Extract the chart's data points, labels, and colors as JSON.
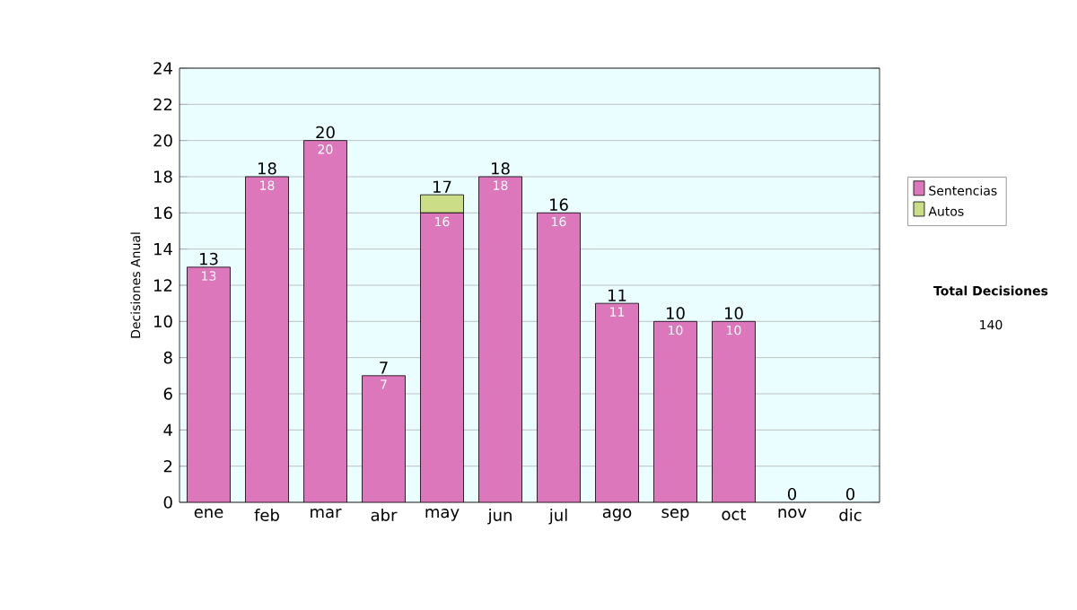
{
  "chart_data": {
    "type": "bar",
    "stacked": true,
    "ylabel": "Decisiones Anual",
    "categories": [
      "ene",
      "feb",
      "mar",
      "abr",
      "may",
      "jun",
      "jul",
      "ago",
      "sep",
      "oct",
      "nov",
      "dic"
    ],
    "series": [
      {
        "name": "Sentencias",
        "color": "#dd77bb",
        "values": [
          13,
          18,
          20,
          7,
          16,
          18,
          16,
          11,
          10,
          10,
          0,
          0
        ],
        "value_labels": [
          "13",
          "18",
          "20",
          "7",
          "16",
          "18",
          "16",
          "11",
          "10",
          "10",
          null,
          null
        ]
      },
      {
        "name": "Autos",
        "color": "#ccdd88",
        "values": [
          0,
          0,
          0,
          0,
          1,
          0,
          0,
          0,
          0,
          0,
          0,
          0
        ]
      }
    ],
    "totals": [
      "13",
      "18",
      "20",
      "7",
      "17",
      "18",
      "16",
      "11",
      "10",
      "10",
      "0",
      "0"
    ],
    "ylim": [
      0,
      24
    ],
    "yticks": [
      0,
      2,
      4,
      6,
      8,
      10,
      12,
      14,
      16,
      18,
      20,
      22,
      24
    ],
    "grid": "y",
    "legend": "right",
    "annotations": [
      "**Total Decisiones**",
      "140"
    ]
  }
}
